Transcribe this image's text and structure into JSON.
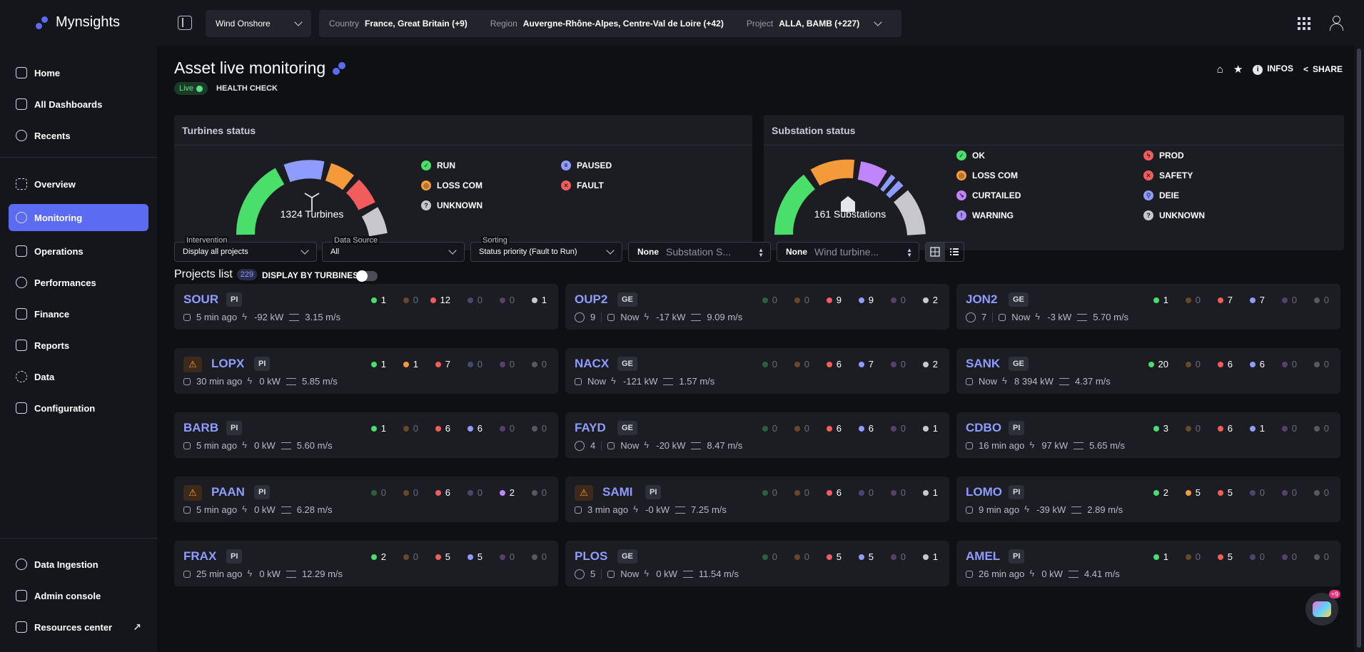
{
  "app": {
    "name": "Mynsights",
    "accent": "#5b6cf2"
  },
  "topbar": {
    "technology": "Wind Onshore",
    "filters": [
      {
        "label": "Country",
        "value": "France, Great Britain (+9)"
      },
      {
        "label": "Region",
        "value": "Auvergne-Rhône-Alpes, Centre-Val de Loire (+42)"
      },
      {
        "label": "Project",
        "value": "ALLA, BAMB (+227)"
      }
    ]
  },
  "sidebar": {
    "top": [
      {
        "label": "Home",
        "icon": "home-icon"
      },
      {
        "label": "All Dashboards",
        "icon": "dashboards-icon"
      },
      {
        "label": "Recents",
        "icon": "clock-icon"
      }
    ],
    "modules": [
      {
        "label": "Overview",
        "icon": "overview-icon"
      },
      {
        "label": "Monitoring",
        "icon": "monitoring-icon",
        "active": true
      },
      {
        "label": "Operations",
        "icon": "operations-icon"
      },
      {
        "label": "Performances",
        "icon": "performances-icon"
      },
      {
        "label": "Finance",
        "icon": "finance-icon"
      },
      {
        "label": "Reports",
        "icon": "reports-icon"
      },
      {
        "label": "Data",
        "icon": "data-icon"
      },
      {
        "label": "Configuration",
        "icon": "configuration-icon"
      }
    ],
    "bottom": [
      {
        "label": "Data Ingestion",
        "icon": "cloud-upload-icon"
      },
      {
        "label": "Admin console",
        "icon": "terminal-icon"
      },
      {
        "label": "Resources center",
        "icon": "folder-icon"
      }
    ]
  },
  "page": {
    "title": "Asset live monitoring",
    "live": "Live",
    "health": "HEALTH CHECK",
    "actions": {
      "infos": "INFOS",
      "share": "SHARE"
    }
  },
  "turbines": {
    "title": "Turbines status",
    "total": "1324 Turbines",
    "legend": [
      {
        "label": "RUN",
        "color": "#4ade6b",
        "glyph": "✓"
      },
      {
        "label": "PAUSED",
        "color": "#8f9cff",
        "glyph": "II"
      },
      {
        "label": "LOSS COM",
        "color": "#f59a3a",
        "glyph": "◎"
      },
      {
        "label": "FAULT",
        "color": "#f25c5c",
        "glyph": "✕"
      },
      {
        "label": "UNKNOWN",
        "color": "#c8c8cc",
        "glyph": "?"
      }
    ]
  },
  "substations": {
    "title": "Substation status",
    "total": "161 Substations",
    "legend": [
      {
        "label": "OK",
        "color": "#4ade6b",
        "glyph": "✓"
      },
      {
        "label": "PROD",
        "color": "#f25c5c",
        "glyph": "ϟ"
      },
      {
        "label": "LOSS COM",
        "color": "#f59a3a",
        "glyph": "◎"
      },
      {
        "label": "SAFETY",
        "color": "#f25c5c",
        "glyph": "✕"
      },
      {
        "label": "CURTAILED",
        "color": "#c084fc",
        "glyph": "↘"
      },
      {
        "label": "DEIE",
        "color": "#8f9cff",
        "glyph": "⚲"
      },
      {
        "label": "WARNING",
        "color": "#a78bfa",
        "glyph": "!"
      },
      {
        "label": "UNKNOWN",
        "color": "#c8c8cc",
        "glyph": "?"
      }
    ]
  },
  "projects": {
    "title": "Projects list",
    "count": "229",
    "display_by_turbines": "DISPLAY BY TURBINES",
    "filters": {
      "intervention": {
        "label": "Intervention",
        "value": "Display all projects"
      },
      "data_source": {
        "label": "Data Source",
        "value": "All"
      },
      "sorting": {
        "label": "Sorting",
        "value": "Status priority (Fault to Run)"
      },
      "substation": {
        "none": "None",
        "placeholder": "Substation S..."
      },
      "wind_turbine": {
        "none": "None",
        "placeholder": "Wind turbine..."
      }
    },
    "status_colors": [
      "#4ade6b",
      "#f59a3a",
      "#f25c5c",
      "#8f9cff",
      "#c084fc",
      "#c8c8cc"
    ],
    "cards": [
      {
        "code": "SOUR",
        "tag": "PI",
        "warn": false,
        "counts": [
          1,
          0,
          12,
          0,
          0,
          1
        ],
        "meta": [
          "5 min ago",
          "-92 kW",
          "3.15 m/s"
        ],
        "interventions": null
      },
      {
        "code": "OUP2",
        "tag": "GE",
        "warn": false,
        "counts": [
          0,
          0,
          9,
          9,
          0,
          2
        ],
        "meta": [
          "Now",
          "-17 kW",
          "9.09 m/s"
        ],
        "interventions": "9"
      },
      {
        "code": "JON2",
        "tag": "GE",
        "warn": false,
        "counts": [
          1,
          0,
          7,
          7,
          0,
          0
        ],
        "meta": [
          "Now",
          "-3 kW",
          "5.70 m/s"
        ],
        "interventions": "7"
      },
      {
        "code": "LOPX",
        "tag": "PI",
        "warn": true,
        "counts": [
          1,
          1,
          7,
          0,
          0,
          0
        ],
        "meta": [
          "30 min ago",
          "0 kW",
          "5.85 m/s"
        ],
        "interventions": null
      },
      {
        "code": "NACX",
        "tag": "GE",
        "warn": false,
        "counts": [
          0,
          0,
          6,
          7,
          0,
          2
        ],
        "meta": [
          "Now",
          "-121 kW",
          "1.57 m/s"
        ],
        "interventions": null
      },
      {
        "code": "SANK",
        "tag": "GE",
        "warn": false,
        "counts": [
          20,
          0,
          6,
          6,
          0,
          0
        ],
        "meta": [
          "Now",
          "8 394 kW",
          "4.37 m/s"
        ],
        "interventions": null
      },
      {
        "code": "BARB",
        "tag": "PI",
        "warn": false,
        "counts": [
          1,
          0,
          6,
          6,
          0,
          0
        ],
        "meta": [
          "5 min ago",
          "0 kW",
          "5.60 m/s"
        ],
        "interventions": null
      },
      {
        "code": "FAYD",
        "tag": "GE",
        "warn": false,
        "counts": [
          0,
          0,
          6,
          6,
          0,
          1
        ],
        "meta": [
          "Now",
          "-20 kW",
          "8.47 m/s"
        ],
        "interventions": "4"
      },
      {
        "code": "CDBO",
        "tag": "PI",
        "warn": false,
        "counts": [
          3,
          0,
          6,
          1,
          0,
          0
        ],
        "meta": [
          "16 min ago",
          "97 kW",
          "5.65 m/s"
        ],
        "interventions": null
      },
      {
        "code": "PAAN",
        "tag": "PI",
        "warn": true,
        "counts": [
          0,
          0,
          6,
          0,
          2,
          0
        ],
        "meta": [
          "5 min ago",
          "0 kW",
          "6.28 m/s"
        ],
        "interventions": null
      },
      {
        "code": "SAMI",
        "tag": "PI",
        "warn": true,
        "counts": [
          0,
          0,
          6,
          0,
          0,
          1
        ],
        "meta": [
          "3 min ago",
          "-0 kW",
          "7.25 m/s"
        ],
        "interventions": null
      },
      {
        "code": "LOMO",
        "tag": "PI",
        "warn": false,
        "counts": [
          2,
          5,
          5,
          0,
          0,
          0
        ],
        "meta": [
          "9 min ago",
          "-39 kW",
          "2.89 m/s"
        ],
        "interventions": null
      },
      {
        "code": "FRAX",
        "tag": "PI",
        "warn": false,
        "counts": [
          2,
          0,
          5,
          5,
          0,
          0
        ],
        "meta": [
          "25 min ago",
          "0 kW",
          "12.29 m/s"
        ],
        "interventions": null
      },
      {
        "code": "PLOS",
        "tag": "GE",
        "warn": false,
        "counts": [
          0,
          0,
          5,
          5,
          0,
          1
        ],
        "meta": [
          "Now",
          "0 kW",
          "11.54 m/s"
        ],
        "interventions": "5"
      },
      {
        "code": "AMEL",
        "tag": "PI",
        "warn": false,
        "counts": [
          1,
          0,
          5,
          0,
          0,
          0
        ],
        "meta": [
          "26 min ago",
          "0 kW",
          "4.41 m/s"
        ],
        "interventions": null
      }
    ]
  },
  "chat": {
    "badge": "+9"
  }
}
